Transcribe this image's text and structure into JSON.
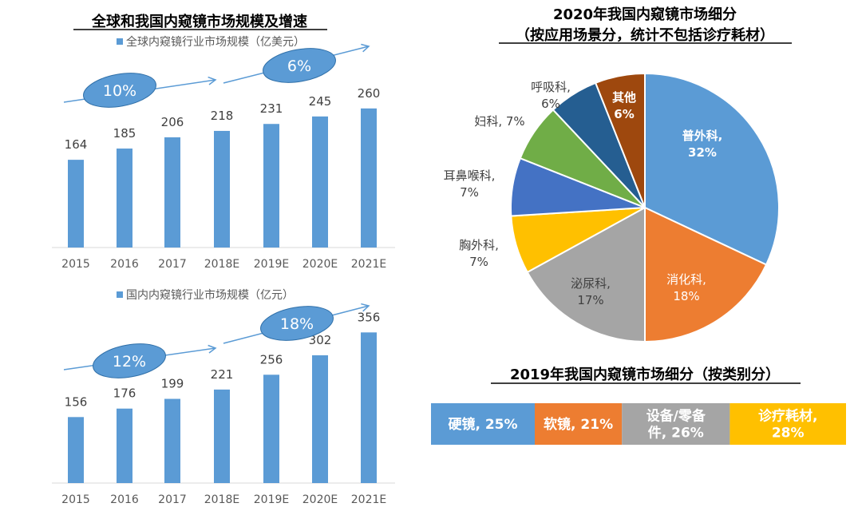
{
  "chart_data": [
    {
      "type": "bar",
      "title": "全球和我国内窥镜市场规模及增速",
      "legend": "全球内窥镜行业市场规模（亿美元）",
      "categories": [
        "2015",
        "2016",
        "2017",
        "2018E",
        "2019E",
        "2020E",
        "2021E"
      ],
      "values": [
        164,
        185,
        206,
        218,
        231,
        245,
        260
      ],
      "annotations": [
        {
          "label": "10%"
        },
        {
          "label": "6%"
        }
      ],
      "color": "#5B9BD5"
    },
    {
      "type": "bar",
      "legend": "国内内窥镜行业市场规模（亿元）",
      "categories": [
        "2015",
        "2016",
        "2017",
        "2018E",
        "2019E",
        "2020E",
        "2021E"
      ],
      "values": [
        156,
        176,
        199,
        221,
        256,
        302,
        356
      ],
      "annotations": [
        {
          "label": "12%"
        },
        {
          "label": "18%"
        }
      ],
      "color": "#5B9BD5"
    },
    {
      "type": "pie",
      "title": [
        "2020年我国内窥镜市场细分",
        "（按应用场景分，统计不包括诊疗耗材）"
      ],
      "slices": [
        {
          "name": "普外科",
          "value": 32,
          "label": [
            "普外科,",
            "32%"
          ],
          "color": "#5B9BD5"
        },
        {
          "name": "消化科",
          "value": 18,
          "label": [
            "消化科,",
            "18%"
          ],
          "color": "#ED7D31"
        },
        {
          "name": "泌尿科",
          "value": 17,
          "label": [
            "泌尿科,",
            "17%"
          ],
          "color": "#A5A5A5"
        },
        {
          "name": "胸外科",
          "value": 7,
          "label": [
            "胸外科,",
            "7%"
          ],
          "color": "#FFC000"
        },
        {
          "name": "耳鼻喉科",
          "value": 7,
          "label": [
            "耳鼻喉科,",
            "7%"
          ],
          "color": "#4472C4"
        },
        {
          "name": "妇科",
          "value": 7,
          "label": [
            "妇科, 7%"
          ],
          "color": "#70AD47"
        },
        {
          "name": "呼吸科",
          "value": 6,
          "label": [
            "呼吸科,",
            "6%"
          ],
          "color": "#255E91"
        },
        {
          "name": "其他",
          "value": 6,
          "label": [
            "其他",
            "6%"
          ],
          "color": "#9E480E"
        }
      ]
    },
    {
      "type": "bar",
      "orientation": "horizontal-stacked-100",
      "title": "2019年我国内窥镜市场细分（按类别分）",
      "segments": [
        {
          "name": "硬镜",
          "value": 25,
          "label": [
            "硬镜, 25%"
          ],
          "color": "#5B9BD5"
        },
        {
          "name": "软镜",
          "value": 21,
          "label": [
            "软镜, 21%"
          ],
          "color": "#ED7D31"
        },
        {
          "name": "设备/零备件",
          "value": 26,
          "label": [
            "设备/零备",
            "件, 26%"
          ],
          "color": "#A5A5A5"
        },
        {
          "name": "诊疗耗材",
          "value": 28,
          "label": [
            "诊疗耗材,",
            "28%"
          ],
          "color": "#FFC000"
        }
      ]
    }
  ]
}
